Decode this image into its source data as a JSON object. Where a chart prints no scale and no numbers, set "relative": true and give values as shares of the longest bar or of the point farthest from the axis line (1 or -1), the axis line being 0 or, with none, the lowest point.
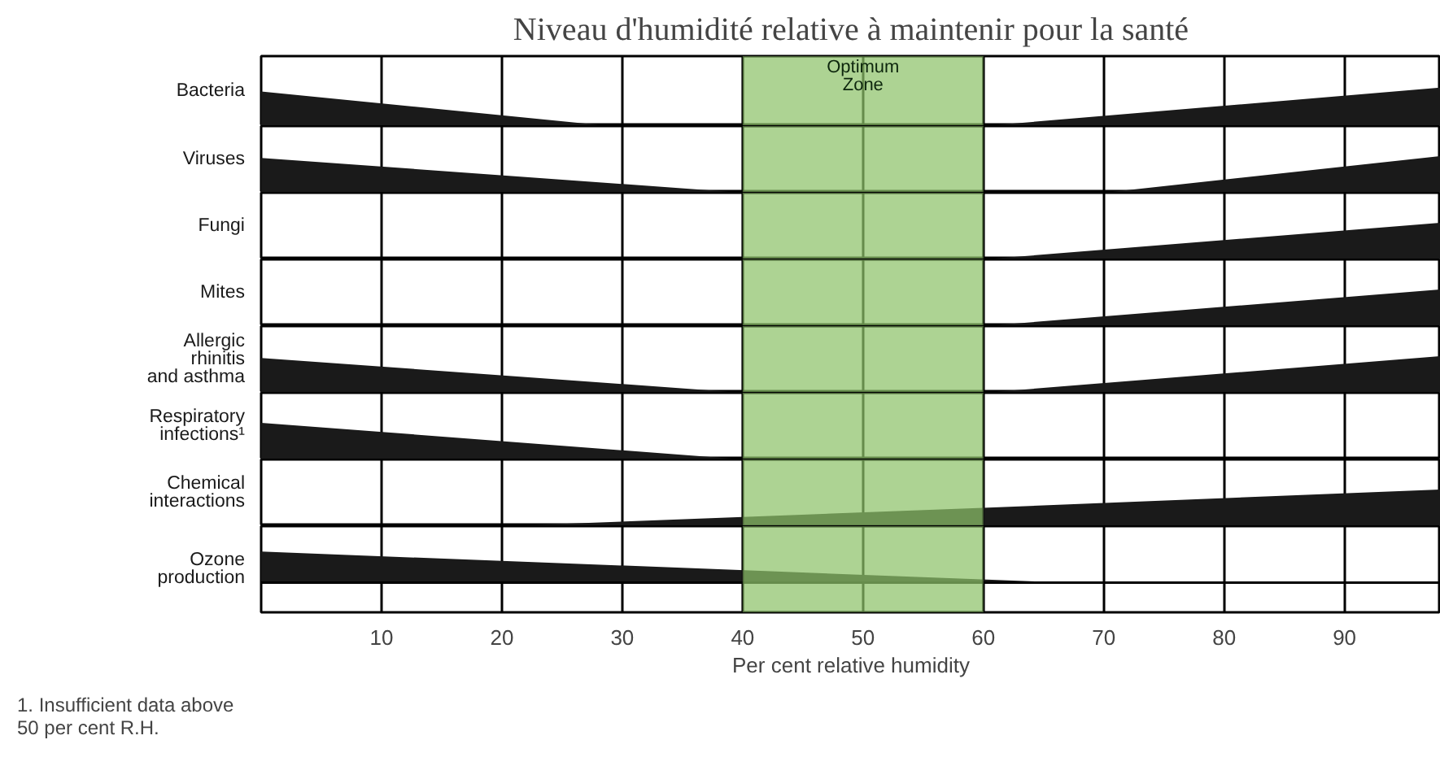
{
  "chart_data": [
    {
      "type": "area",
      "relative": true,
      "title": "Niveau d'humidité relative à maintenir pour la santé",
      "xlim": [
        0,
        98
      ],
      "grid": "x",
      "tick_labels": false,
      "bands": [
        {
          "axis": "x",
          "from": 40,
          "to": 60,
          "label": "Optimum\nZone",
          "color": "#8dc26a"
        }
      ],
      "series": [
        {
          "name": "Bacteria",
          "color": "#1a1a1a",
          "x": [
            0,
            29,
            60,
            98
          ],
          "values": [
            0.9,
            0,
            0,
            1
          ]
        }
      ]
    },
    {
      "type": "area",
      "relative": true,
      "xlim": [
        0,
        98
      ],
      "grid": "x",
      "tick_labels": false,
      "bands": [
        {
          "axis": "x",
          "from": 40,
          "to": 60,
          "color": "#8dc26a"
        }
      ],
      "series": [
        {
          "name": "Viruses",
          "color": "#1a1a1a",
          "x": [
            0,
            40,
            70,
            98
          ],
          "values": [
            0.95,
            0,
            0,
            1
          ]
        }
      ]
    },
    {
      "type": "area",
      "relative": true,
      "xlim": [
        0,
        98
      ],
      "grid": "x",
      "tick_labels": false,
      "bands": [
        {
          "axis": "x",
          "from": 40,
          "to": 60,
          "color": "#8dc26a"
        }
      ],
      "series": [
        {
          "name": "Fungi",
          "color": "#1a1a1a",
          "x": [
            60,
            98
          ],
          "values": [
            0,
            1
          ]
        }
      ]
    },
    {
      "type": "area",
      "relative": true,
      "xlim": [
        0,
        98
      ],
      "grid": "x",
      "tick_labels": false,
      "bands": [
        {
          "axis": "x",
          "from": 40,
          "to": 60,
          "color": "#8dc26a"
        }
      ],
      "series": [
        {
          "name": "Mites",
          "color": "#1a1a1a",
          "x": [
            60,
            98
          ],
          "values": [
            0,
            1
          ]
        }
      ]
    },
    {
      "type": "area",
      "relative": true,
      "xlim": [
        0,
        98
      ],
      "grid": "x",
      "tick_labels": false,
      "bands": [
        {
          "axis": "x",
          "from": 40,
          "to": 60,
          "color": "#8dc26a"
        }
      ],
      "series": [
        {
          "name": "Allergic\nrhinitis\nand asthma",
          "color": "#1a1a1a",
          "x": [
            0,
            40,
            60,
            98
          ],
          "values": [
            0.95,
            0,
            0,
            1
          ]
        }
      ]
    },
    {
      "type": "area",
      "relative": true,
      "xlim": [
        0,
        98
      ],
      "grid": "x",
      "tick_labels": false,
      "bands": [
        {
          "axis": "x",
          "from": 40,
          "to": 60,
          "color": "#8dc26a"
        }
      ],
      "series": [
        {
          "name": "Respiratory\ninfections¹",
          "color": "#1a1a1a",
          "x": [
            0,
            40
          ],
          "values": [
            1,
            0
          ]
        }
      ]
    },
    {
      "type": "area",
      "relative": true,
      "xlim": [
        0,
        98
      ],
      "grid": "x",
      "tick_labels": false,
      "bands": [
        {
          "axis": "x",
          "from": 40,
          "to": 60,
          "color": "#8dc26a"
        }
      ],
      "series": [
        {
          "name": "Chemical\ninteractions",
          "color": "#1a1a1a",
          "x": [
            20,
            40,
            60,
            98
          ],
          "values": [
            0,
            0.25,
            0.5,
            1
          ]
        }
      ]
    },
    {
      "type": "area",
      "relative": true,
      "xlim": [
        0,
        98
      ],
      "xticks": [
        10,
        20,
        30,
        40,
        50,
        60,
        70,
        80,
        90
      ],
      "grid": "x",
      "tick_labels": "x",
      "xlabel": "Per cent relative humidity",
      "annotations": [
        "1. Insufficient data above\n50 per cent R.H."
      ],
      "bands": [
        {
          "axis": "x",
          "from": 40,
          "to": 60,
          "color": "#8dc26a"
        }
      ],
      "series": [
        {
          "name": "Ozone\nproduction",
          "color": "#1a1a1a",
          "x": [
            0,
            67
          ],
          "values": [
            1,
            0
          ]
        }
      ]
    }
  ]
}
